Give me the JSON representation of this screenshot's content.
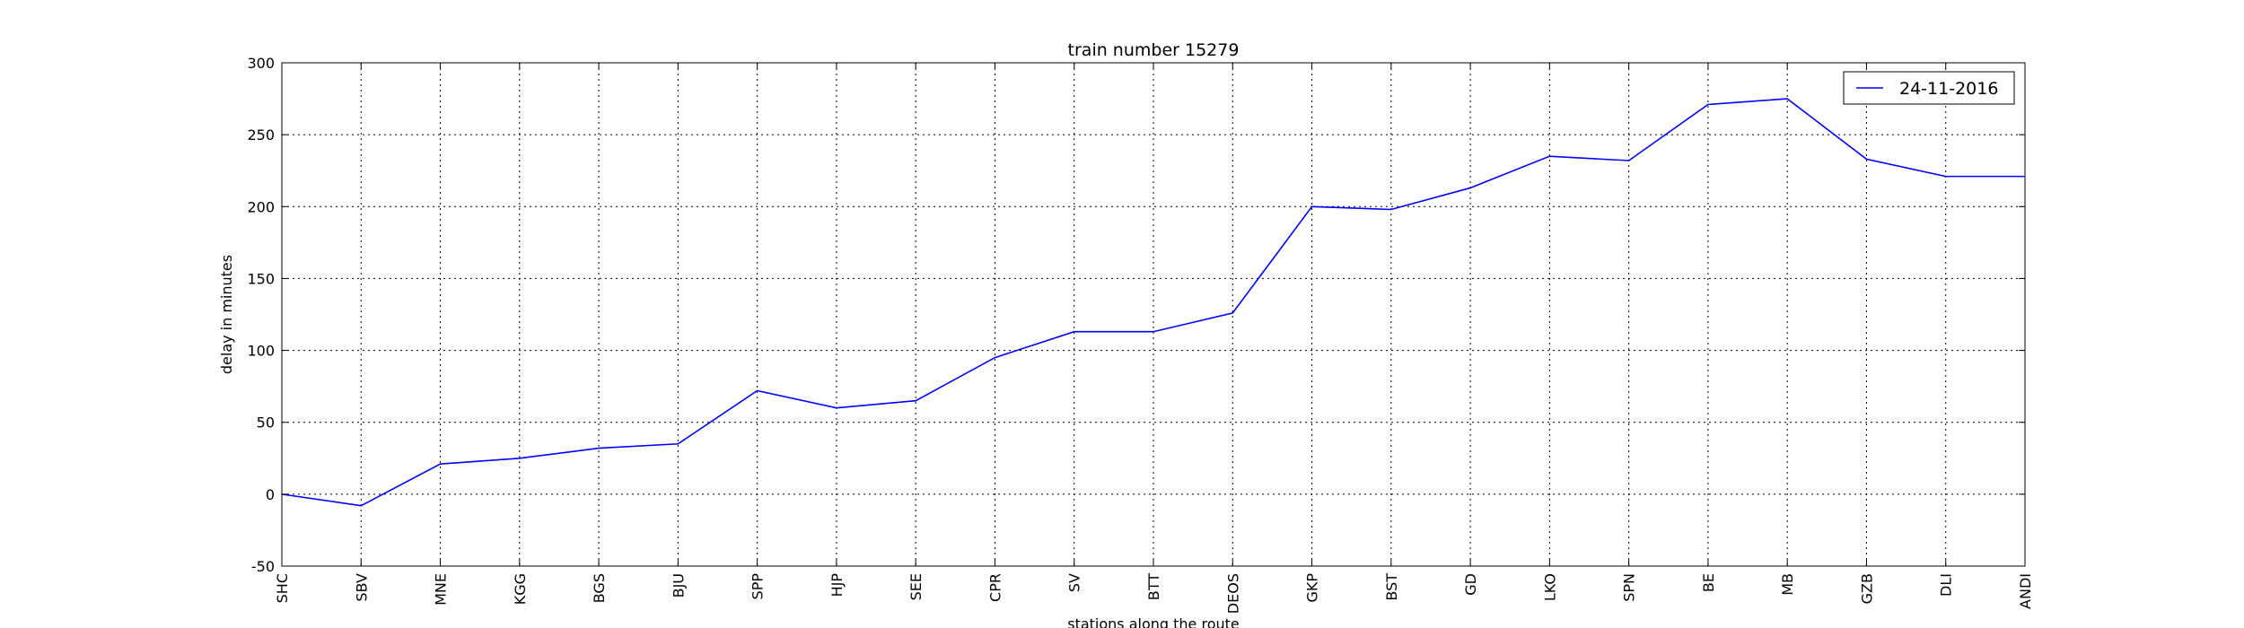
{
  "chart_data": {
    "type": "line",
    "title": "train number 15279",
    "xlabel": "stations along the route",
    "ylabel": "delay in minutes",
    "categories": [
      "SHC",
      "SBV",
      "MNE",
      "KGG",
      "BGS",
      "BJU",
      "SPP",
      "HJP",
      "SEE",
      "CPR",
      "SV",
      "BTT",
      "DEOS",
      "GKP",
      "BST",
      "GD",
      "LKO",
      "SPN",
      "BE",
      "MB",
      "GZB",
      "DLI",
      "ANDI"
    ],
    "series": [
      {
        "name": "24-11-2016",
        "color": "#0000ff",
        "values": [
          0,
          -8,
          21,
          25,
          32,
          35,
          72,
          60,
          65,
          95,
          113,
          113,
          126,
          200,
          198,
          213,
          235,
          232,
          271,
          275,
          233,
          221,
          221
        ]
      }
    ],
    "ylim": [
      -50,
      300
    ],
    "yticks": [
      -50,
      0,
      50,
      100,
      150,
      200,
      250,
      300
    ],
    "grid": true,
    "legend_position": "top-right"
  }
}
